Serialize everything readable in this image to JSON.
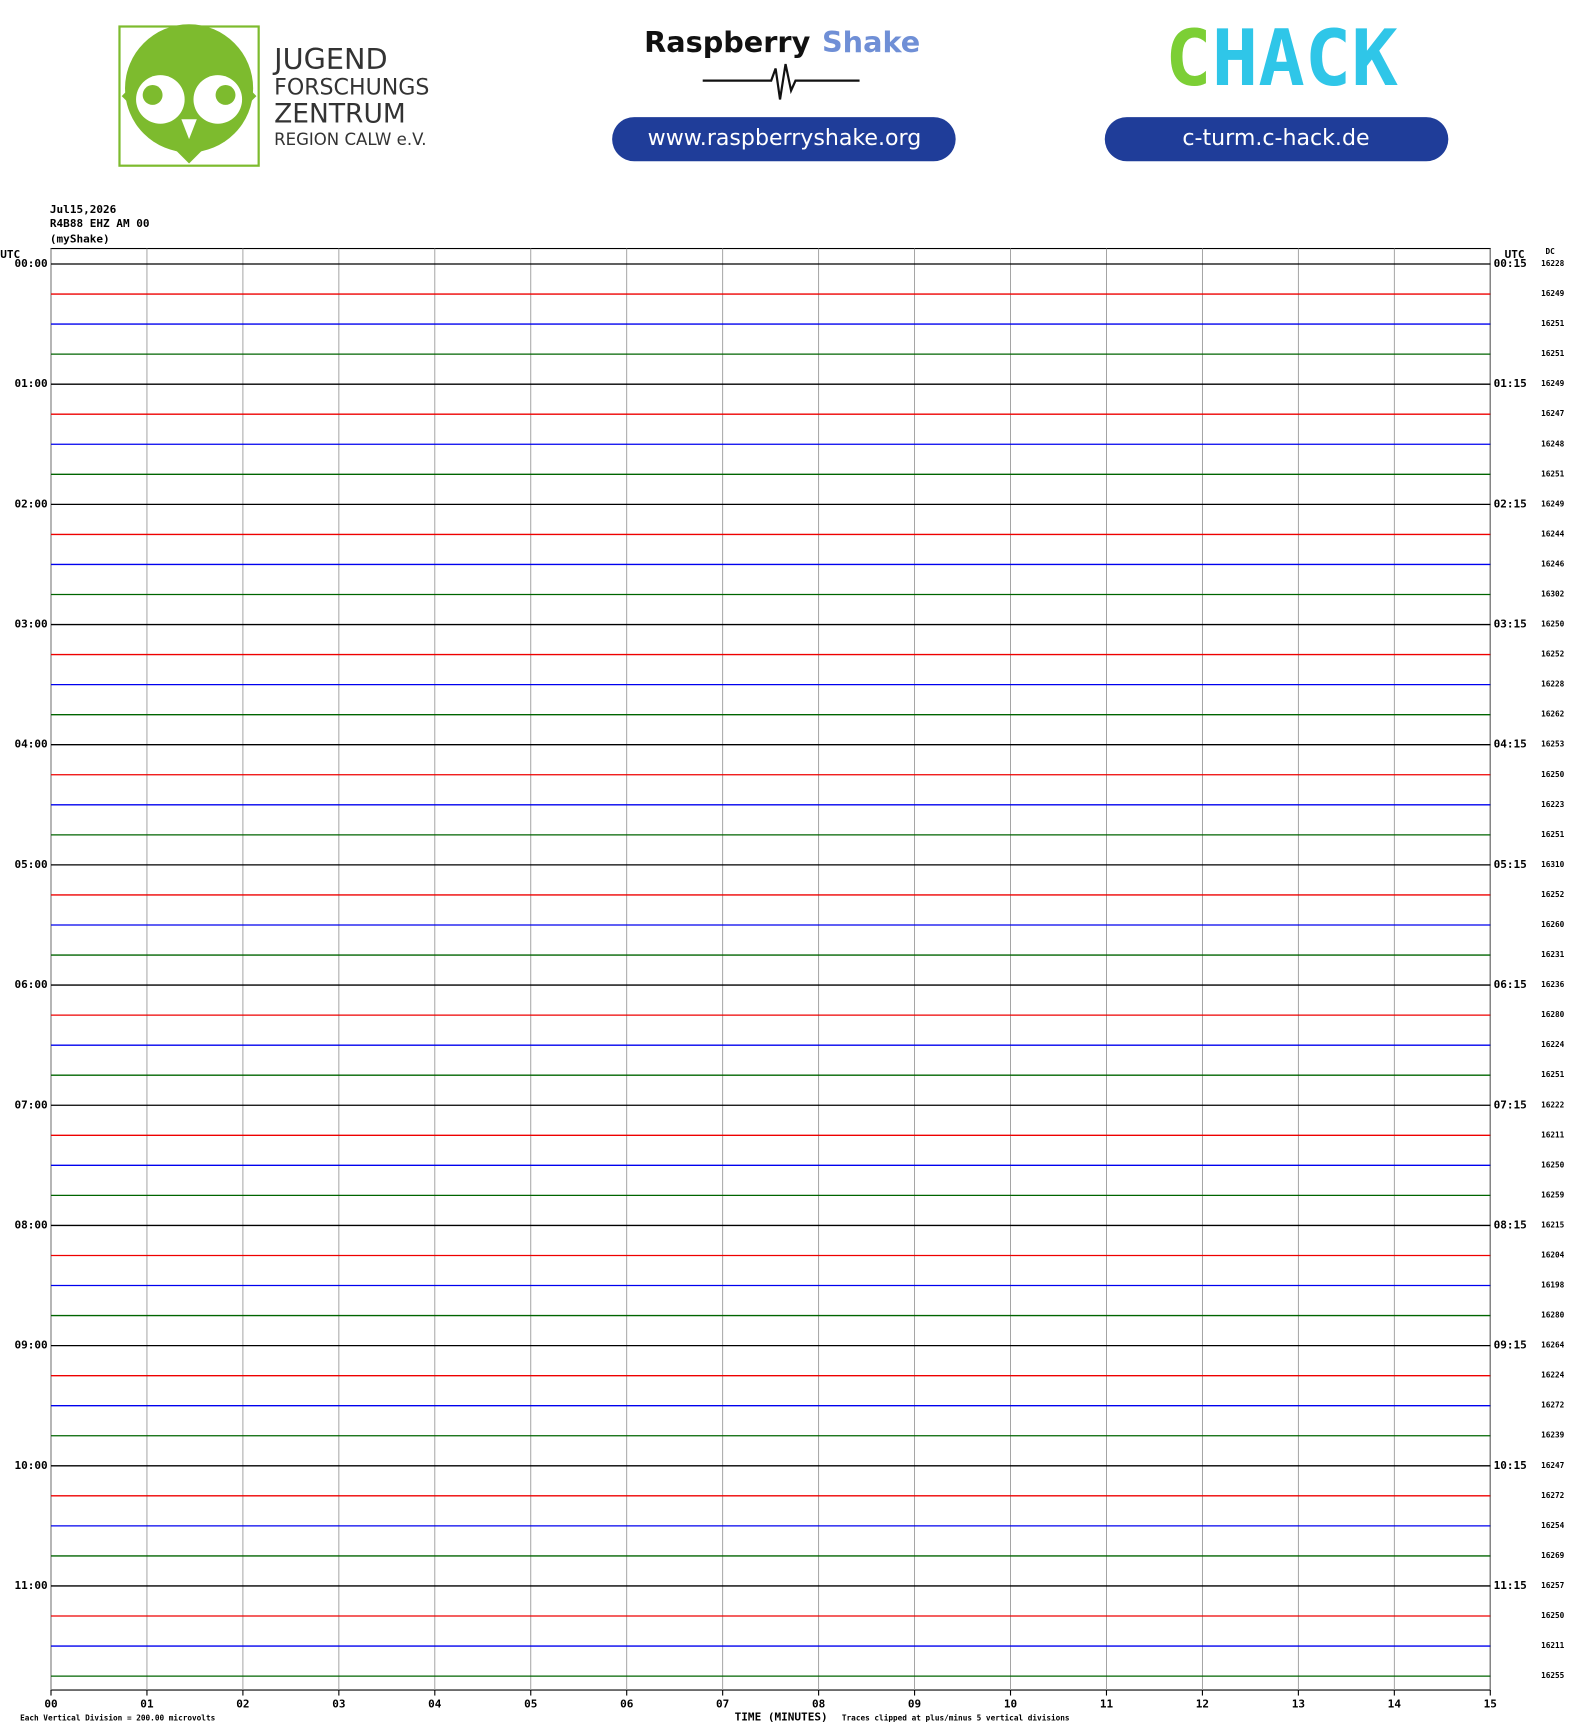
{
  "logos": {
    "jfz": {
      "lines": [
        "JUGEND",
        "FORSCHUNGS",
        "ZENTRUM",
        "REGION CALW e.V."
      ]
    },
    "raspberry": {
      "name": "Raspberry",
      "accent": "Shake",
      "url": "www.raspberryshake.org"
    },
    "chack": {
      "parts": [
        "C",
        "HACK"
      ],
      "url": "c-turm.c-hack.de"
    }
  },
  "chart_data": {
    "type": "helicorder",
    "header": [
      "Jul15,2026",
      "R4B88 EHZ AM 00",
      "(myShake)"
    ],
    "left_label": "UTC",
    "right_label": "UTC",
    "dc_label": "DC",
    "colors": [
      "#000000",
      "#ee0000",
      "#0000ee",
      "#006400"
    ],
    "hour_labels_left": [
      "00:00",
      "01:00",
      "02:00",
      "03:00",
      "04:00",
      "05:00",
      "06:00",
      "07:00",
      "08:00",
      "09:00",
      "10:00",
      "11:00"
    ],
    "hour_labels_right": [
      "00:15",
      "01:15",
      "02:15",
      "03:15",
      "04:15",
      "05:15",
      "06:15",
      "07:15",
      "08:15",
      "09:15",
      "10:15",
      "11:15"
    ],
    "rows_per_hour": 4,
    "dc": [
      16228,
      16249,
      16251,
      16251,
      16249,
      16247,
      16248,
      16251,
      16249,
      16244,
      16246,
      16302,
      16250,
      16252,
      16228,
      16262,
      16253,
      16250,
      16223,
      16251,
      16310,
      16252,
      16260,
      16231,
      16236,
      16280,
      16224,
      16251,
      16222,
      16211,
      16250,
      16259,
      16215,
      16204,
      16198,
      16280,
      16264,
      16224,
      16272,
      16239,
      16247,
      16272,
      16254,
      16269,
      16257,
      16250,
      16211,
      16255
    ],
    "xlim": [
      0,
      15
    ],
    "xticks": [
      {
        "value": 0,
        "label": "00"
      },
      {
        "value": 1,
        "label": "01"
      },
      {
        "value": 2,
        "label": "02"
      },
      {
        "value": 3,
        "label": "03"
      },
      {
        "value": 4,
        "label": "04"
      },
      {
        "value": 5,
        "label": "05"
      },
      {
        "value": 6,
        "label": "06"
      },
      {
        "value": 7,
        "label": "07"
      },
      {
        "value": 8,
        "label": "08"
      },
      {
        "value": 9,
        "label": "09"
      },
      {
        "value": 10,
        "label": "10"
      },
      {
        "value": 11,
        "label": "11"
      },
      {
        "value": 12,
        "label": "12"
      },
      {
        "value": 13,
        "label": "13"
      },
      {
        "value": 14,
        "label": "14"
      },
      {
        "value": 15,
        "label": "15"
      }
    ],
    "xlabel": "TIME (MINUTES)",
    "footnote_left": "Each Vertical Division =  200.00 microvolts",
    "footnote_right": "Traces clipped at plus/minus 5 vertical divisions",
    "grid": true
  }
}
